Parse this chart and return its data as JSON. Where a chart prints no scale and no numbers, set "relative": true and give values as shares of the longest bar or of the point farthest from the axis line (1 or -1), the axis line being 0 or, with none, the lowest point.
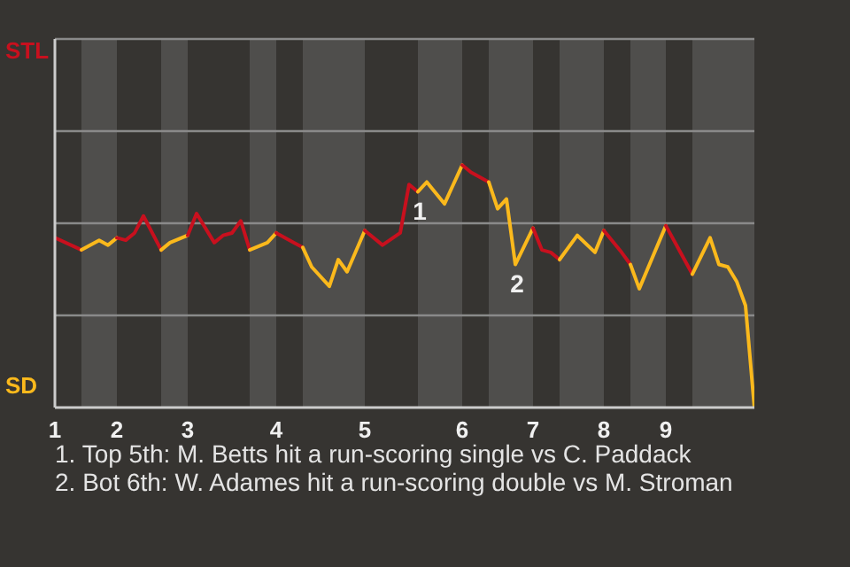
{
  "chart_data": {
    "type": "line",
    "relative": true,
    "ref_lines": [
      {
        "axis": "y",
        "value": 0.38,
        "color": "#8a8a8a"
      },
      {
        "axis": "y",
        "value": 0.76,
        "color": "#8a8a8a"
      },
      {
        "axis": "y",
        "value": 1.14,
        "color": "#8a8a8a"
      }
    ],
    "categories": [
      "1",
      null,
      null,
      null,
      null,
      null,
      null,
      "2",
      null,
      null,
      null,
      null,
      null,
      null,
      null,
      "3",
      null,
      null,
      null,
      null,
      null,
      null,
      null,
      null,
      null,
      "4",
      null,
      null,
      null,
      null,
      null,
      null,
      null,
      null,
      null,
      "5",
      null,
      null,
      null,
      null,
      null,
      null,
      null,
      null,
      null,
      null,
      "6",
      null,
      null,
      null,
      null,
      null,
      null,
      null,
      "7",
      null,
      null,
      null,
      null,
      null,
      null,
      null,
      "8",
      null,
      null,
      null,
      null,
      null,
      null,
      "9",
      null,
      null,
      null,
      null,
      null,
      null,
      null,
      null,
      null,
      null
    ],
    "series": [
      {
        "color": "#c8101e",
        "values": [
          0.7,
          null,
          null,
          0.65,
          null,
          null,
          null,
          null,
          null,
          null,
          null,
          null,
          null,
          null,
          null,
          null,
          null,
          null,
          null,
          null,
          null,
          null,
          null,
          null,
          null,
          null,
          null,
          null,
          null,
          null,
          null,
          null,
          null,
          null,
          null,
          null,
          null,
          null,
          null,
          null,
          null,
          null,
          null,
          null,
          null,
          null,
          null,
          null,
          null,
          null,
          null,
          null,
          null,
          null,
          null,
          null,
          null,
          null,
          null,
          null,
          null,
          null,
          null,
          null,
          null,
          null,
          null,
          null,
          null,
          null,
          null,
          null,
          null,
          null,
          null,
          null,
          null,
          null,
          null,
          null
        ]
      },
      {
        "color": "#fbb91c",
        "values": [
          null,
          null,
          null,
          0.65,
          null,
          0.69,
          0.67,
          0.7,
          null,
          null,
          null,
          null,
          null,
          null,
          null,
          null,
          null,
          null,
          null,
          null,
          null,
          null,
          null,
          null,
          null,
          null,
          null,
          null,
          null,
          null,
          null,
          null,
          null,
          null,
          null,
          null,
          null,
          null,
          null,
          null,
          null,
          null,
          null,
          null,
          null,
          null,
          null,
          null,
          null,
          null,
          null,
          null,
          null,
          null,
          null,
          null,
          null,
          null,
          null,
          null,
          null,
          null,
          null,
          null,
          null,
          null,
          null,
          null,
          null,
          null,
          null,
          null,
          null,
          null,
          null,
          null,
          null,
          null,
          null,
          null
        ]
      },
      {
        "color": "#c8101e",
        "values": [
          null,
          null,
          null,
          null,
          null,
          null,
          null,
          0.7,
          0.69,
          0.72,
          0.79,
          null,
          0.65,
          null,
          null,
          null,
          null,
          null,
          null,
          null,
          null,
          null,
          null,
          null,
          null,
          null,
          null,
          null,
          null,
          null,
          null,
          null,
          null,
          null,
          null,
          null,
          null,
          null,
          null,
          null,
          null,
          null,
          null,
          null,
          null,
          null,
          null,
          null,
          null,
          null,
          null,
          null,
          null,
          null,
          null,
          null,
          null,
          null,
          null,
          null,
          null,
          null,
          null,
          null,
          null,
          null,
          null,
          null,
          null,
          null,
          null,
          null,
          null,
          null,
          null,
          null,
          null,
          null,
          null,
          null
        ]
      },
      {
        "color": "#fbb91c",
        "values": [
          null,
          null,
          null,
          null,
          null,
          null,
          null,
          null,
          null,
          null,
          null,
          null,
          0.65,
          0.68,
          null,
          0.71,
          null,
          null,
          null,
          null,
          null,
          null,
          null,
          null,
          null,
          null,
          null,
          null,
          null,
          null,
          null,
          null,
          null,
          null,
          null,
          null,
          null,
          null,
          null,
          null,
          null,
          null,
          null,
          null,
          null,
          null,
          null,
          null,
          null,
          null,
          null,
          null,
          null,
          null,
          null,
          null,
          null,
          null,
          null,
          null,
          null,
          null,
          null,
          null,
          null,
          null,
          null,
          null,
          null,
          null,
          null,
          null,
          null,
          null,
          null,
          null,
          null,
          null,
          null,
          null
        ]
      },
      {
        "color": "#c8101e",
        "values": [
          null,
          null,
          null,
          null,
          null,
          null,
          null,
          null,
          null,
          null,
          null,
          null,
          null,
          null,
          null,
          0.71,
          0.8,
          null,
          0.68,
          0.71,
          0.72,
          0.77,
          0.65,
          null,
          null,
          null,
          null,
          null,
          null,
          null,
          null,
          null,
          null,
          null,
          null,
          null,
          null,
          null,
          null,
          null,
          null,
          null,
          null,
          null,
          null,
          null,
          null,
          null,
          null,
          null,
          null,
          null,
          null,
          null,
          null,
          null,
          null,
          null,
          null,
          null,
          null,
          null,
          null,
          null,
          null,
          null,
          null,
          null,
          null,
          null,
          null,
          null,
          null,
          null,
          null,
          null,
          null,
          null,
          null,
          null
        ]
      },
      {
        "color": "#fbb91c",
        "values": [
          null,
          null,
          null,
          null,
          null,
          null,
          null,
          null,
          null,
          null,
          null,
          null,
          null,
          null,
          null,
          null,
          null,
          null,
          null,
          null,
          null,
          null,
          0.65,
          null,
          0.68,
          0.72,
          null,
          null,
          null,
          null,
          null,
          null,
          null,
          null,
          null,
          null,
          null,
          null,
          null,
          null,
          null,
          null,
          null,
          null,
          null,
          null,
          null,
          null,
          null,
          null,
          null,
          null,
          null,
          null,
          null,
          null,
          null,
          null,
          null,
          null,
          null,
          null,
          null,
          null,
          null,
          null,
          null,
          null,
          null,
          null,
          null,
          null,
          null,
          null,
          null,
          null,
          null,
          null,
          null,
          null
        ]
      },
      {
        "color": "#c8101e",
        "values": [
          null,
          null,
          null,
          null,
          null,
          null,
          null,
          null,
          null,
          null,
          null,
          null,
          null,
          null,
          null,
          null,
          null,
          null,
          null,
          null,
          null,
          null,
          null,
          null,
          null,
          0.72,
          null,
          0.68,
          0.66,
          null,
          null,
          null,
          null,
          null,
          null,
          null,
          null,
          null,
          null,
          null,
          null,
          null,
          null,
          null,
          null,
          null,
          null,
          null,
          null,
          null,
          null,
          null,
          null,
          null,
          null,
          null,
          null,
          null,
          null,
          null,
          null,
          null,
          null,
          null,
          null,
          null,
          null,
          null,
          null,
          null,
          null,
          null,
          null,
          null,
          null,
          null,
          null,
          null,
          null,
          null
        ]
      },
      {
        "color": "#fbb91c",
        "values": [
          null,
          null,
          null,
          null,
          null,
          null,
          null,
          null,
          null,
          null,
          null,
          null,
          null,
          null,
          null,
          null,
          null,
          null,
          null,
          null,
          null,
          null,
          null,
          null,
          null,
          null,
          null,
          null,
          0.66,
          0.58,
          null,
          0.5,
          0.61,
          0.56,
          null,
          0.73,
          null,
          null,
          null,
          null,
          null,
          null,
          null,
          null,
          null,
          null,
          null,
          null,
          null,
          null,
          null,
          null,
          null,
          null,
          null,
          null,
          null,
          null,
          null,
          null,
          null,
          null,
          null,
          null,
          null,
          null,
          null,
          null,
          null,
          null,
          null,
          null,
          null,
          null,
          null,
          null,
          null,
          null,
          null,
          null
        ]
      },
      {
        "color": "#c8101e",
        "values": [
          null,
          null,
          null,
          null,
          null,
          null,
          null,
          null,
          null,
          null,
          null,
          null,
          null,
          null,
          null,
          null,
          null,
          null,
          null,
          null,
          null,
          null,
          null,
          null,
          null,
          null,
          null,
          null,
          null,
          null,
          null,
          null,
          null,
          null,
          null,
          0.73,
          null,
          0.67,
          null,
          0.72,
          0.92,
          0.89,
          null,
          null,
          null,
          null,
          null,
          null,
          null,
          null,
          null,
          null,
          null,
          null,
          null,
          null,
          null,
          null,
          null,
          null,
          null,
          null,
          null,
          null,
          null,
          null,
          null,
          null,
          null,
          null,
          null,
          null,
          null,
          null,
          null,
          null,
          null,
          null,
          null,
          null
        ]
      },
      {
        "color": "#fbb91c",
        "values": [
          null,
          null,
          null,
          null,
          null,
          null,
          null,
          null,
          null,
          null,
          null,
          null,
          null,
          null,
          null,
          null,
          null,
          null,
          null,
          null,
          null,
          null,
          null,
          null,
          null,
          null,
          null,
          null,
          null,
          null,
          null,
          null,
          null,
          null,
          null,
          null,
          null,
          null,
          null,
          null,
          null,
          0.89,
          0.93,
          null,
          0.84,
          null,
          1,
          null,
          null,
          null,
          null,
          null,
          null,
          null,
          null,
          null,
          null,
          null,
          null,
          null,
          null,
          null,
          null,
          null,
          null,
          null,
          null,
          null,
          null,
          null,
          null,
          null,
          null,
          null,
          null,
          null,
          null,
          null,
          null,
          null
        ]
      },
      {
        "color": "#c8101e",
        "values": [
          null,
          null,
          null,
          null,
          null,
          null,
          null,
          null,
          null,
          null,
          null,
          null,
          null,
          null,
          null,
          null,
          null,
          null,
          null,
          null,
          null,
          null,
          null,
          null,
          null,
          null,
          null,
          null,
          null,
          null,
          null,
          null,
          null,
          null,
          null,
          null,
          null,
          null,
          null,
          null,
          null,
          null,
          null,
          null,
          null,
          null,
          1,
          0.97,
          null,
          0.93,
          null,
          null,
          null,
          null,
          null,
          null,
          null,
          null,
          null,
          null,
          null,
          null,
          null,
          null,
          null,
          null,
          null,
          null,
          null,
          null,
          null,
          null,
          null,
          null,
          null,
          null,
          null,
          null,
          null,
          null
        ]
      },
      {
        "color": "#fbb91c",
        "values": [
          null,
          null,
          null,
          null,
          null,
          null,
          null,
          null,
          null,
          null,
          null,
          null,
          null,
          null,
          null,
          null,
          null,
          null,
          null,
          null,
          null,
          null,
          null,
          null,
          null,
          null,
          null,
          null,
          null,
          null,
          null,
          null,
          null,
          null,
          null,
          null,
          null,
          null,
          null,
          null,
          null,
          null,
          null,
          null,
          null,
          null,
          null,
          null,
          null,
          0.93,
          0.82,
          0.86,
          0.59,
          null,
          0.74,
          null,
          null,
          null,
          null,
          null,
          null,
          null,
          null,
          null,
          null,
          null,
          null,
          null,
          null,
          null,
          null,
          null,
          null,
          null,
          null,
          null,
          null,
          null,
          null,
          null
        ]
      },
      {
        "color": "#c8101e",
        "values": [
          null,
          null,
          null,
          null,
          null,
          null,
          null,
          null,
          null,
          null,
          null,
          null,
          null,
          null,
          null,
          null,
          null,
          null,
          null,
          null,
          null,
          null,
          null,
          null,
          null,
          null,
          null,
          null,
          null,
          null,
          null,
          null,
          null,
          null,
          null,
          null,
          null,
          null,
          null,
          null,
          null,
          null,
          null,
          null,
          null,
          null,
          null,
          null,
          null,
          null,
          null,
          null,
          null,
          null,
          0.74,
          0.65,
          0.64,
          0.61,
          null,
          null,
          null,
          null,
          null,
          null,
          null,
          null,
          null,
          null,
          null,
          null,
          null,
          null,
          null,
          null,
          null,
          null,
          null,
          null,
          null,
          null
        ]
      },
      {
        "color": "#fbb91c",
        "values": [
          null,
          null,
          null,
          null,
          null,
          null,
          null,
          null,
          null,
          null,
          null,
          null,
          null,
          null,
          null,
          null,
          null,
          null,
          null,
          null,
          null,
          null,
          null,
          null,
          null,
          null,
          null,
          null,
          null,
          null,
          null,
          null,
          null,
          null,
          null,
          null,
          null,
          null,
          null,
          null,
          null,
          null,
          null,
          null,
          null,
          null,
          null,
          null,
          null,
          null,
          null,
          null,
          null,
          null,
          null,
          null,
          null,
          0.61,
          null,
          0.71,
          null,
          0.64,
          0.73,
          null,
          null,
          null,
          null,
          null,
          null,
          null,
          null,
          null,
          null,
          null,
          null,
          null,
          null,
          null,
          null,
          null
        ]
      },
      {
        "color": "#c8101e",
        "values": [
          null,
          null,
          null,
          null,
          null,
          null,
          null,
          null,
          null,
          null,
          null,
          null,
          null,
          null,
          null,
          null,
          null,
          null,
          null,
          null,
          null,
          null,
          null,
          null,
          null,
          null,
          null,
          null,
          null,
          null,
          null,
          null,
          null,
          null,
          null,
          null,
          null,
          null,
          null,
          null,
          null,
          null,
          null,
          null,
          null,
          null,
          null,
          null,
          null,
          null,
          null,
          null,
          null,
          null,
          null,
          null,
          null,
          null,
          null,
          null,
          null,
          null,
          0.73,
          null,
          0.64,
          0.59,
          null,
          null,
          null,
          null,
          null,
          null,
          null,
          null,
          null,
          null,
          null,
          null,
          null,
          null
        ]
      },
      {
        "color": "#fbb91c",
        "values": [
          null,
          null,
          null,
          null,
          null,
          null,
          null,
          null,
          null,
          null,
          null,
          null,
          null,
          null,
          null,
          null,
          null,
          null,
          null,
          null,
          null,
          null,
          null,
          null,
          null,
          null,
          null,
          null,
          null,
          null,
          null,
          null,
          null,
          null,
          null,
          null,
          null,
          null,
          null,
          null,
          null,
          null,
          null,
          null,
          null,
          null,
          null,
          null,
          null,
          null,
          null,
          null,
          null,
          null,
          null,
          null,
          null,
          null,
          null,
          null,
          null,
          null,
          null,
          null,
          null,
          0.59,
          0.49,
          null,
          null,
          0.75,
          null,
          null,
          null,
          null,
          null,
          null,
          null,
          null,
          null,
          null
        ]
      },
      {
        "color": "#c8101e",
        "values": [
          null,
          null,
          null,
          null,
          null,
          null,
          null,
          null,
          null,
          null,
          null,
          null,
          null,
          null,
          null,
          null,
          null,
          null,
          null,
          null,
          null,
          null,
          null,
          null,
          null,
          null,
          null,
          null,
          null,
          null,
          null,
          null,
          null,
          null,
          null,
          null,
          null,
          null,
          null,
          null,
          null,
          null,
          null,
          null,
          null,
          null,
          null,
          null,
          null,
          null,
          null,
          null,
          null,
          null,
          null,
          null,
          null,
          null,
          null,
          null,
          null,
          null,
          null,
          null,
          null,
          null,
          null,
          null,
          null,
          0.75,
          null,
          null,
          0.55,
          null,
          null,
          null,
          null,
          null,
          null,
          null
        ]
      },
      {
        "color": "#fbb91c",
        "values": [
          null,
          null,
          null,
          null,
          null,
          null,
          null,
          null,
          null,
          null,
          null,
          null,
          null,
          null,
          null,
          null,
          null,
          null,
          null,
          null,
          null,
          null,
          null,
          null,
          null,
          null,
          null,
          null,
          null,
          null,
          null,
          null,
          null,
          null,
          null,
          null,
          null,
          null,
          null,
          null,
          null,
          null,
          null,
          null,
          null,
          null,
          null,
          null,
          null,
          null,
          null,
          null,
          null,
          null,
          null,
          null,
          null,
          null,
          null,
          null,
          null,
          null,
          null,
          null,
          null,
          null,
          null,
          null,
          null,
          null,
          null,
          null,
          0.55,
          null,
          0.7,
          0.59,
          0.58,
          0.52,
          0.42,
          0
        ]
      }
    ],
    "annotations": [
      {
        "text": "1",
        "y": 0.89
      },
      {
        "text": "2",
        "y": 0.59
      },
      "STL",
      "SD",
      "1. Top 5th: M. Betts hit a run-scoring single vs C. Paddack",
      "2. Bot 6th: W. Adames hit a run-scoring double vs M. Stroman"
    ]
  }
}
